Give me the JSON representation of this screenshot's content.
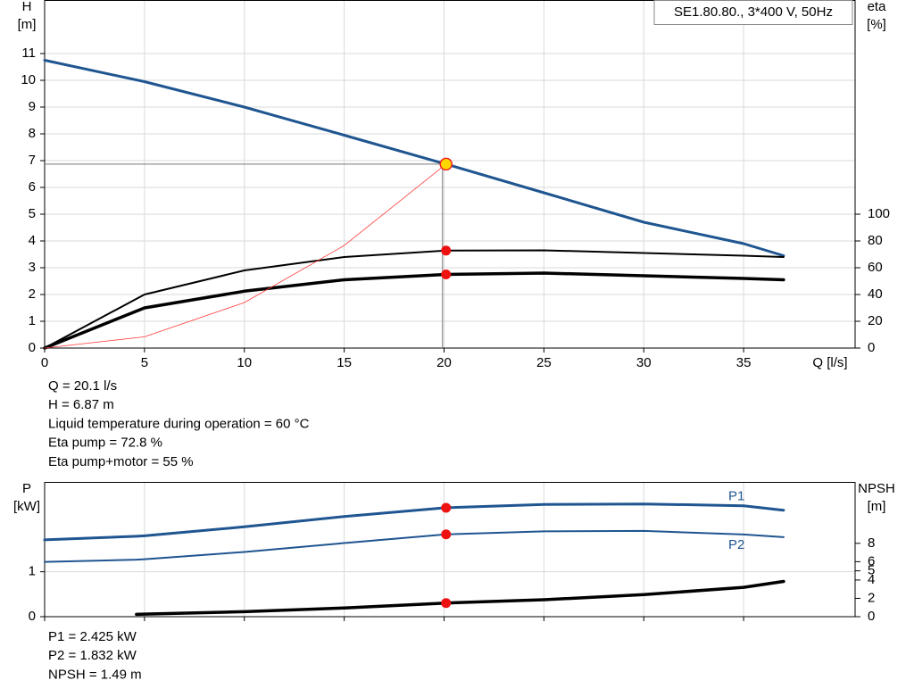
{
  "chart_data": [
    {
      "type": "line",
      "title": "SE1.80.80., 3*400 V, 50Hz",
      "ylabel": "H",
      "yunit": "[m]",
      "y2label": "eta",
      "y2unit": "[%]",
      "xlabel": "Q [l/s]",
      "x": [
        0,
        5,
        10,
        15,
        20.1,
        25,
        30,
        35,
        37
      ],
      "xlim": [
        0,
        40
      ],
      "xticks": [
        0,
        5,
        10,
        15,
        20,
        25,
        30,
        35
      ],
      "ylim": [
        0,
        13
      ],
      "yticks": [
        0,
        1,
        2,
        3,
        4,
        5,
        6,
        7,
        8,
        9,
        10,
        11
      ],
      "y2lim": [
        0,
        260
      ],
      "y2ticks": [
        0,
        20,
        40,
        60,
        80,
        100
      ],
      "grid": true,
      "operating_point_x": 20.1,
      "series": [
        {
          "color": "#1f5590",
          "line_width": 3,
          "values": [
            10.75,
            9.95,
            9.0,
            7.95,
            6.87,
            5.8,
            4.7,
            3.9,
            3.45
          ]
        },
        {
          "color": "#000000",
          "line_width": 2,
          "axis": "y2",
          "values": [
            0,
            40,
            58,
            68,
            72.8,
            73,
            71,
            69,
            68
          ]
        },
        {
          "color": "#000000",
          "line_width": 3.5,
          "axis": "y2",
          "values": [
            0,
            30,
            42.5,
            51,
            55,
            56,
            54,
            52,
            51
          ]
        },
        {
          "color": "#ff3b3b",
          "line_width": 0.8,
          "values": [
            0,
            0.42,
            1.7,
            3.83,
            6.87,
            null,
            null,
            null,
            null
          ]
        }
      ],
      "info": [
        "Q = 20.1 l/s",
        "H = 6.87 m",
        "Liquid temperature during operation = 60 °C",
        "Eta pump = 72.8 %",
        "Eta pump+motor = 55 %"
      ]
    },
    {
      "type": "line",
      "ylabel": "P",
      "yunit": "[kW]",
      "y2label": "NPSH",
      "y2unit": "[m]",
      "x": [
        0,
        4.6,
        5,
        10,
        15,
        20.1,
        25,
        30,
        35,
        37
      ],
      "xlim": [
        0,
        40
      ],
      "xticks": [
        0,
        5,
        10,
        15,
        20,
        25,
        30,
        35
      ],
      "ylim": [
        0,
        3
      ],
      "yticks": [
        0,
        1
      ],
      "y2lim": [
        0,
        14.7
      ],
      "y2ticks": [
        0,
        2,
        4,
        5,
        6,
        8
      ],
      "grid": true,
      "operating_point_x": 20.1,
      "series": [
        {
          "name": "P1",
          "color": "#1f5590",
          "line_width": 3,
          "values": [
            1.71,
            1.79,
            1.8,
            2.0,
            2.23,
            2.425,
            2.5,
            2.51,
            2.47,
            2.37
          ]
        },
        {
          "name": "P2",
          "color": "#1f5590",
          "line_width": 2,
          "values": [
            1.22,
            1.27,
            1.28,
            1.44,
            1.64,
            1.832,
            1.9,
            1.91,
            1.83,
            1.77
          ]
        },
        {
          "color": "#000000",
          "line_width": 3.5,
          "axis": "y2",
          "values": [
            null,
            0.25,
            0.28,
            0.55,
            0.95,
            1.49,
            1.85,
            2.4,
            3.2,
            3.85
          ]
        }
      ],
      "info": [
        "P1 = 2.425 kW",
        "P2 = 1.832 kW",
        "NPSH = 1.49 m"
      ]
    }
  ]
}
